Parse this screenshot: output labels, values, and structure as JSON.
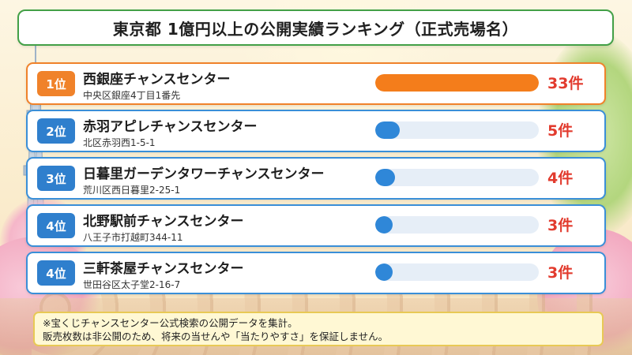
{
  "title": "東京都 1億円以上の公開実績ランキング（正式売場名）",
  "rankings": [
    {
      "rank": "1位",
      "name": "西銀座チャンスセンター",
      "address": "中央区銀座4丁目1番先",
      "count_label": "33件",
      "count": 33,
      "share": 1.0
    },
    {
      "rank": "2位",
      "name": "赤羽アピレチャンスセンター",
      "address": "北区赤羽西1-5-1",
      "count_label": "5件",
      "count": 5,
      "share": 0.152
    },
    {
      "rank": "3位",
      "name": "日暮里ガーデンタワーチャンスセンター",
      "address": "荒川区西日暮里2-25-1",
      "count_label": "4件",
      "count": 4,
      "share": 0.121
    },
    {
      "rank": "4位",
      "name": "北野駅前チャンスセンター",
      "address": "八王子市打越町344-11",
      "count_label": "3件",
      "count": 3,
      "share": 0.091
    },
    {
      "rank": "4位",
      "name": "三軒茶屋チャンスセンター",
      "address": "世田谷区太子堂2-16-7",
      "count_label": "3件",
      "count": 3,
      "share": 0.091
    }
  ],
  "note": {
    "line1": "※宝くじチャンスセンター公式検索の公開データを集計。",
    "line2": "販売枚数は非公開のため、将来の当せんや「当たりやすさ」を保証しません。"
  },
  "colors": {
    "title_border": "#43a047",
    "top_accent": "#f0822a",
    "row_accent": "#3a8fd8",
    "count_text": "#e23b2e"
  }
}
